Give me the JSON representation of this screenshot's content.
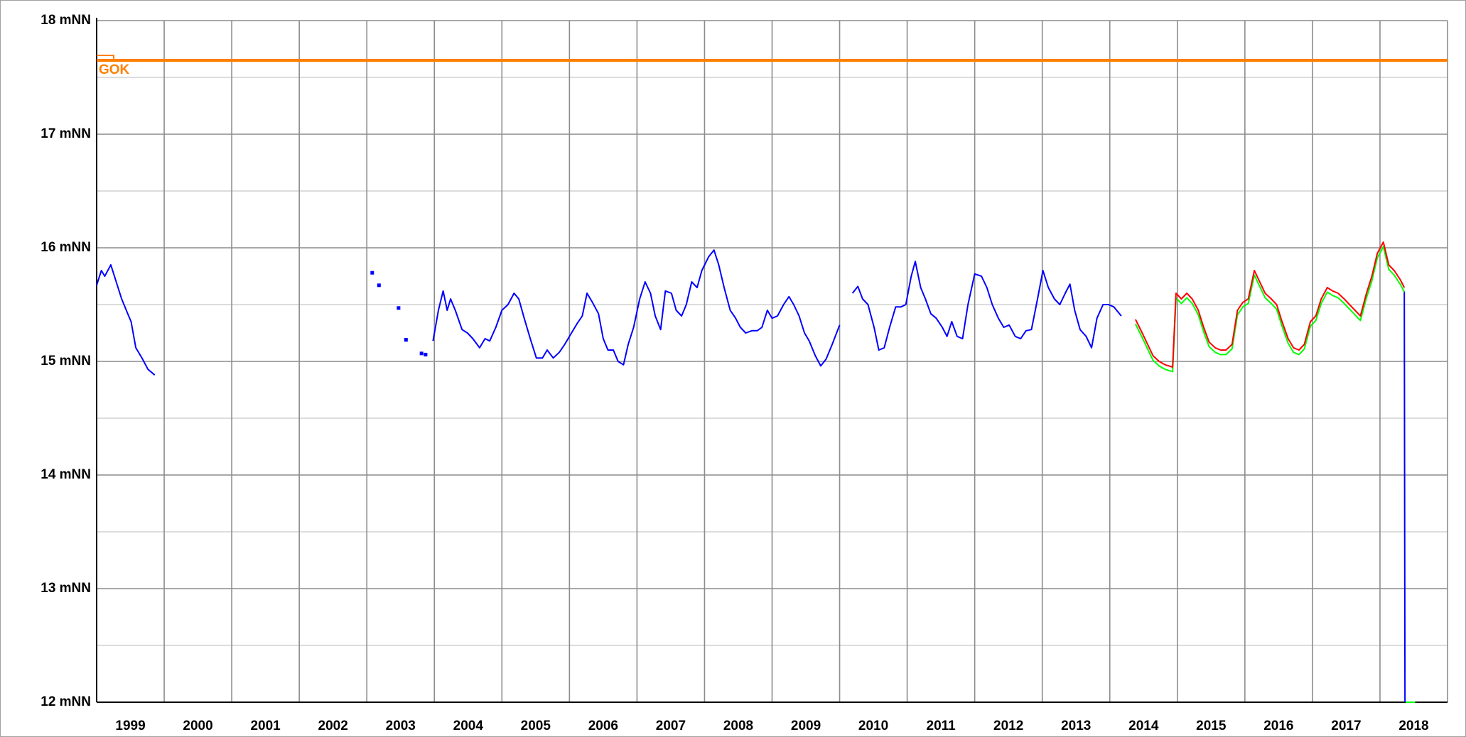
{
  "chart_data": {
    "type": "line",
    "categories": [
      "1999",
      "2000",
      "2001",
      "2002",
      "2003",
      "2004",
      "2005",
      "2006",
      "2007",
      "2008",
      "2009",
      "2010",
      "2011",
      "2012",
      "2013",
      "2014",
      "2015",
      "2016",
      "2017",
      "2018"
    ],
    "xlim": [
      1999,
      2019
    ],
    "xticks": [
      1999,
      2000,
      2001,
      2002,
      2003,
      2004,
      2005,
      2006,
      2007,
      2008,
      2009,
      2010,
      2011,
      2012,
      2013,
      2014,
      2015,
      2016,
      2017,
      2018,
      2019
    ],
    "ylim": [
      12,
      18
    ],
    "yticks": [
      {
        "value": 12,
        "label": "12 mNN"
      },
      {
        "value": 13,
        "label": "13 mNN"
      },
      {
        "value": 14,
        "label": "14 mNN"
      },
      {
        "value": 15,
        "label": "15 mNN"
      },
      {
        "value": 16,
        "label": "16 mNN"
      },
      {
        "value": 17,
        "label": "17 mNN"
      },
      {
        "value": 18,
        "label": "18 mNN"
      }
    ],
    "yminor": [
      12.5,
      13.5,
      14.5,
      15.5,
      16.5,
      17.5
    ],
    "grid": true,
    "reference_line": {
      "label": "GOK",
      "value": 17.65,
      "color": "#ff8000"
    },
    "series": [
      {
        "color": "#0000ff",
        "x": [
          1999.0,
          1999.07,
          1999.12,
          1999.21,
          1999.29,
          1999.37,
          1999.46,
          1999.51,
          1999.58,
          1999.68,
          1999.76,
          1999.86,
          2001.9,
          2003.98,
          2004.06,
          2004.13,
          2004.19,
          2004.24,
          2004.31,
          2004.41,
          2004.49,
          2004.57,
          2004.67,
          2004.75,
          2004.82,
          2004.91,
          2005.0,
          2005.09,
          2005.18,
          2005.25,
          2005.33,
          2005.42,
          2005.51,
          2005.6,
          2005.67,
          2005.76,
          2005.85,
          2005.93,
          2006.03,
          2006.11,
          2006.19,
          2006.26,
          2006.34,
          2006.43,
          2006.5,
          2006.57,
          2006.65,
          2006.72,
          2006.8,
          2006.87,
          2006.95,
          2007.04,
          2007.12,
          2007.2,
          2007.27,
          2007.35,
          2007.42,
          2007.51,
          2007.58,
          2007.66,
          2007.73,
          2007.81,
          2007.89,
          2007.96,
          2008.06,
          2008.14,
          2008.21,
          2008.29,
          2008.38,
          2008.46,
          2008.53,
          2008.61,
          2008.7,
          2008.78,
          2008.85,
          2008.93,
          2009.0,
          2009.08,
          2009.17,
          2009.25,
          2009.32,
          2009.4,
          2009.48,
          2009.55,
          2009.64,
          2009.72,
          2009.8,
          2009.89,
          2010.0,
          2010.1,
          2010.19,
          2010.27,
          2010.34,
          2010.42,
          2010.51,
          2010.58,
          2010.66,
          2010.74,
          2010.83,
          2010.91,
          2010.98,
          2011.06,
          2011.12,
          2011.2,
          2011.27,
          2011.35,
          2011.43,
          2011.52,
          2011.59,
          2011.66,
          2011.74,
          2011.82,
          2011.9,
          2012.0,
          2012.1,
          2012.18,
          2012.26,
          2012.35,
          2012.43,
          2012.51,
          2012.6,
          2012.68,
          2012.76,
          2012.84,
          2012.93,
          2013.01,
          2013.09,
          2013.18,
          2013.26,
          2013.34,
          2013.41,
          2013.48,
          2013.56,
          2013.65,
          2013.73,
          2013.81,
          2013.9,
          2013.98,
          2014.06,
          2014.17,
          2016.0,
          2018.36,
          2018.37
        ],
        "values": [
          15.67,
          15.8,
          15.75,
          15.85,
          15.7,
          15.55,
          15.42,
          15.35,
          15.12,
          15.02,
          14.93,
          14.88,
          null,
          15.18,
          15.45,
          15.62,
          15.45,
          15.55,
          15.45,
          15.28,
          15.25,
          15.2,
          15.12,
          15.2,
          15.18,
          15.3,
          15.45,
          15.5,
          15.6,
          15.55,
          15.38,
          15.2,
          15.03,
          15.03,
          15.1,
          15.03,
          15.08,
          15.15,
          15.25,
          15.33,
          15.4,
          15.6,
          15.52,
          15.42,
          15.2,
          15.1,
          15.1,
          15.0,
          14.97,
          15.15,
          15.3,
          15.55,
          15.7,
          15.6,
          15.4,
          15.28,
          15.62,
          15.6,
          15.45,
          15.4,
          15.5,
          15.7,
          15.65,
          15.8,
          15.92,
          15.98,
          15.85,
          15.65,
          15.45,
          15.38,
          15.3,
          15.25,
          15.27,
          15.27,
          15.3,
          15.45,
          15.38,
          15.4,
          15.5,
          15.57,
          15.5,
          15.4,
          15.25,
          15.18,
          15.05,
          14.96,
          15.02,
          15.15,
          15.32,
          null,
          15.6,
          15.66,
          15.55,
          15.5,
          15.3,
          15.1,
          15.12,
          15.3,
          15.48,
          15.48,
          15.5,
          15.75,
          15.88,
          15.65,
          15.55,
          15.42,
          15.38,
          15.3,
          15.22,
          15.35,
          15.22,
          15.2,
          15.5,
          15.77,
          15.75,
          15.65,
          15.5,
          15.38,
          15.3,
          15.32,
          15.22,
          15.2,
          15.27,
          15.28,
          15.55,
          15.8,
          15.65,
          15.55,
          15.5,
          15.6,
          15.68,
          15.45,
          15.28,
          15.22,
          15.12,
          15.38,
          15.5,
          15.5,
          15.48,
          15.4,
          null,
          15.62,
          12.0
        ]
      },
      {
        "color": "#0000ff",
        "marker": true,
        "x": [
          2003.08,
          2003.18,
          2003.47,
          2003.58,
          2003.81,
          2003.87
        ],
        "values": [
          15.78,
          15.67,
          15.47,
          15.19,
          15.07,
          15.06
        ]
      },
      {
        "color": "#00ff00",
        "x": [
          2014.38,
          2014.48,
          2014.56,
          2014.64,
          2014.73,
          2014.82,
          2014.93,
          2014.98,
          2015.06,
          2015.14,
          2015.22,
          2015.31,
          2015.39,
          2015.47,
          2015.56,
          2015.64,
          2015.72,
          2015.81,
          2015.89,
          2015.97,
          2016.05,
          2016.14,
          2016.22,
          2016.3,
          2016.39,
          2016.47,
          2016.55,
          2016.64,
          2016.72,
          2016.8,
          2016.88,
          2016.97,
          2017.05,
          2017.13,
          2017.22,
          2017.3,
          2017.38,
          2017.47,
          2017.55,
          2017.63,
          2017.71,
          2017.8,
          2017.88,
          2017.96,
          2018.05,
          2018.13,
          2018.21,
          2018.3,
          2018.36,
          2018.37,
          2018.38,
          2018.52
        ],
        "values": [
          15.33,
          15.21,
          15.11,
          15.01,
          14.96,
          14.93,
          14.91,
          15.56,
          15.51,
          15.56,
          15.51,
          15.41,
          15.26,
          15.13,
          15.08,
          15.06,
          15.06,
          15.11,
          15.41,
          15.48,
          15.51,
          15.76,
          15.66,
          15.56,
          15.51,
          15.46,
          15.31,
          15.16,
          15.08,
          15.06,
          15.11,
          15.31,
          15.36,
          15.51,
          15.61,
          15.58,
          15.56,
          15.51,
          15.46,
          15.41,
          15.36,
          15.56,
          15.71,
          15.91,
          16.01,
          15.81,
          15.76,
          15.68,
          15.61,
          null,
          12.0,
          12.0
        ]
      },
      {
        "color": "#ff0000",
        "x": [
          2014.38,
          2014.48,
          2014.56,
          2014.64,
          2014.73,
          2014.82,
          2014.93,
          2014.98,
          2015.06,
          2015.14,
          2015.22,
          2015.31,
          2015.39,
          2015.47,
          2015.56,
          2015.64,
          2015.72,
          2015.81,
          2015.89,
          2015.97,
          2016.05,
          2016.14,
          2016.22,
          2016.3,
          2016.39,
          2016.47,
          2016.55,
          2016.64,
          2016.72,
          2016.8,
          2016.88,
          2016.97,
          2017.05,
          2017.13,
          2017.22,
          2017.3,
          2017.38,
          2017.47,
          2017.55,
          2017.63,
          2017.71,
          2017.8,
          2017.88,
          2017.96,
          2018.05,
          2018.13,
          2018.21,
          2018.3,
          2018.36
        ],
        "values": [
          15.37,
          15.25,
          15.15,
          15.05,
          15.0,
          14.97,
          14.95,
          15.6,
          15.55,
          15.6,
          15.55,
          15.45,
          15.3,
          15.17,
          15.12,
          15.1,
          15.1,
          15.15,
          15.45,
          15.52,
          15.55,
          15.8,
          15.7,
          15.6,
          15.55,
          15.5,
          15.35,
          15.2,
          15.12,
          15.1,
          15.15,
          15.35,
          15.4,
          15.55,
          15.65,
          15.62,
          15.6,
          15.55,
          15.5,
          15.45,
          15.4,
          15.6,
          15.75,
          15.95,
          16.05,
          15.85,
          15.8,
          15.72,
          15.65
        ]
      }
    ]
  }
}
